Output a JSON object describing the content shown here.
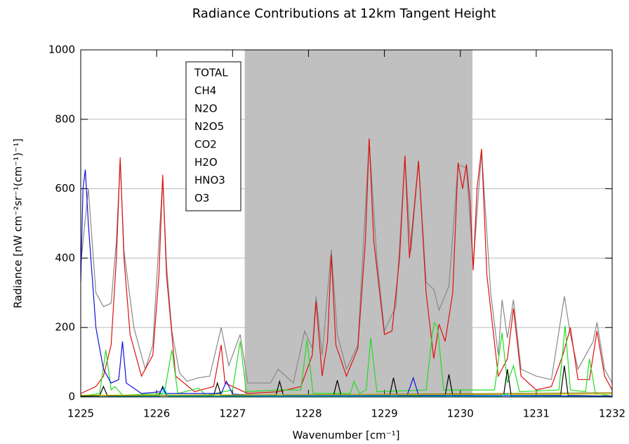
{
  "chart_data": {
    "type": "line",
    "title": "Radiance Contributions at 12km Tangent Height",
    "xlabel": "Wavenumber [cm⁻¹]",
    "ylabel": "Radiance [nW cm⁻²sr⁻¹(cm⁻¹)⁻¹]",
    "xlim": [
      1225,
      1232
    ],
    "ylim": [
      0,
      1000
    ],
    "xticks": [
      1225,
      1226,
      1227,
      1228,
      1229,
      1230,
      1231,
      1232
    ],
    "yticks": [
      0,
      200,
      400,
      600,
      800,
      1000
    ],
    "grid": true,
    "shade": [
      1227.16,
      1230.16
    ],
    "shade_color": "#c0c0c0",
    "legend": "upper left",
    "series": [
      {
        "name": "TOTAL",
        "color": "#888888",
        "x": [
          1225.0,
          1225.1,
          1225.2,
          1225.3,
          1225.4,
          1225.47,
          1225.52,
          1225.57,
          1225.7,
          1225.85,
          1225.95,
          1226.08,
          1226.13,
          1226.2,
          1226.3,
          1226.4,
          1226.55,
          1226.7,
          1226.85,
          1226.95,
          1227.1,
          1227.2,
          1227.5,
          1227.6,
          1227.8,
          1227.95,
          1228.05,
          1228.1,
          1228.18,
          1228.3,
          1228.38,
          1228.5,
          1228.65,
          1228.8,
          1228.9,
          1229.0,
          1229.15,
          1229.27,
          1229.35,
          1229.45,
          1229.55,
          1229.65,
          1229.72,
          1229.85,
          1229.97,
          1230.08,
          1230.17,
          1230.28,
          1230.4,
          1230.5,
          1230.55,
          1230.62,
          1230.7,
          1230.8,
          1231.0,
          1231.2,
          1231.37,
          1231.45,
          1231.55,
          1231.75,
          1231.8,
          1231.9,
          1232.0
        ],
        "values": [
          380,
          600,
          300,
          260,
          270,
          450,
          680,
          420,
          200,
          80,
          150,
          630,
          380,
          190,
          70,
          45,
          55,
          60,
          200,
          90,
          180,
          40,
          40,
          80,
          40,
          190,
          140,
          290,
          120,
          425,
          180,
          80,
          150,
          740,
          400,
          190,
          260,
          690,
          420,
          680,
          330,
          310,
          250,
          320,
          670,
          660,
          380,
          710,
          300,
          120,
          280,
          170,
          280,
          80,
          60,
          50,
          290,
          180,
          80,
          160,
          215,
          80,
          40
        ]
      },
      {
        "name": "CH4",
        "color": "#e01010",
        "x": [
          1225.0,
          1225.2,
          1225.3,
          1225.4,
          1225.47,
          1225.52,
          1225.57,
          1225.65,
          1225.8,
          1225.95,
          1226.03,
          1226.08,
          1226.13,
          1226.25,
          1226.5,
          1226.75,
          1226.85,
          1226.9,
          1227.0,
          1227.2,
          1227.6,
          1227.9,
          1228.05,
          1228.1,
          1228.18,
          1228.25,
          1228.3,
          1228.36,
          1228.5,
          1228.65,
          1228.75,
          1228.8,
          1228.86,
          1229.0,
          1229.1,
          1229.2,
          1229.27,
          1229.33,
          1229.45,
          1229.55,
          1229.65,
          1229.72,
          1229.8,
          1229.9,
          1229.97,
          1230.03,
          1230.08,
          1230.13,
          1230.17,
          1230.22,
          1230.28,
          1230.35,
          1230.5,
          1230.62,
          1230.7,
          1230.8,
          1231.0,
          1231.2,
          1231.35,
          1231.45,
          1231.55,
          1231.7,
          1231.8,
          1231.9,
          1232.0
        ],
        "values": [
          10,
          30,
          60,
          150,
          400,
          690,
          400,
          180,
          60,
          120,
          350,
          640,
          350,
          60,
          15,
          30,
          150,
          40,
          30,
          10,
          15,
          30,
          120,
          275,
          60,
          160,
          410,
          150,
          60,
          140,
          450,
          745,
          450,
          180,
          190,
          400,
          695,
          400,
          680,
          300,
          110,
          210,
          160,
          300,
          675,
          600,
          670,
          560,
          365,
          600,
          715,
          350,
          60,
          110,
          255,
          60,
          20,
          30,
          120,
          200,
          50,
          50,
          190,
          60,
          20
        ]
      },
      {
        "name": "N2O",
        "color": "#22dd22",
        "x": [
          1225.0,
          1225.25,
          1225.33,
          1225.4,
          1225.45,
          1225.55,
          1226.1,
          1226.2,
          1226.28,
          1226.55,
          1226.65,
          1227.0,
          1227.1,
          1227.18,
          1227.6,
          1227.9,
          1227.98,
          1228.06,
          1228.55,
          1228.6,
          1228.67,
          1228.76,
          1228.82,
          1228.9,
          1229.55,
          1229.63,
          1229.66,
          1229.7,
          1229.78,
          1230.45,
          1230.55,
          1230.62,
          1230.7,
          1230.78,
          1231.3,
          1231.38,
          1231.45,
          1231.65,
          1231.7,
          1231.78,
          1232.0
        ],
        "values": [
          2,
          10,
          135,
          20,
          30,
          5,
          10,
          135,
          10,
          25,
          5,
          20,
          160,
          15,
          20,
          20,
          165,
          10,
          10,
          45,
          10,
          20,
          170,
          15,
          20,
          180,
          215,
          200,
          20,
          20,
          185,
          40,
          90,
          15,
          20,
          205,
          20,
          15,
          110,
          10,
          2
        ]
      },
      {
        "name": "N2O5",
        "color": "#8b7500",
        "x": [
          1225.0,
          1232.0
        ],
        "values": [
          2,
          12
        ]
      },
      {
        "name": "CO2",
        "color": "#000000",
        "x": [
          1225.0,
          1225.25,
          1225.3,
          1225.35,
          1226.03,
          1226.08,
          1226.13,
          1226.75,
          1226.8,
          1226.85,
          1227.57,
          1227.62,
          1227.67,
          1228.33,
          1228.38,
          1228.43,
          1229.07,
          1229.12,
          1229.17,
          1229.8,
          1229.85,
          1229.9,
          1230.57,
          1230.62,
          1230.67,
          1231.32,
          1231.37,
          1231.42,
          1232.0
        ],
        "values": [
          2,
          4,
          30,
          4,
          4,
          30,
          4,
          4,
          40,
          4,
          4,
          45,
          4,
          4,
          48,
          4,
          4,
          55,
          4,
          4,
          65,
          4,
          4,
          80,
          4,
          4,
          90,
          4,
          2
        ]
      },
      {
        "name": "H2O",
        "color": "#1010e0",
        "x": [
          1225.0,
          1225.03,
          1225.06,
          1225.1,
          1225.2,
          1225.3,
          1225.4,
          1225.5,
          1225.55,
          1225.6,
          1225.8,
          1226.05,
          1226.08,
          1226.12,
          1226.85,
          1226.92,
          1227.0,
          1227.5,
          1229.3,
          1229.38,
          1229.45,
          1232.0
        ],
        "values": [
          330,
          600,
          655,
          500,
          200,
          80,
          40,
          50,
          160,
          40,
          10,
          15,
          25,
          10,
          10,
          45,
          8,
          3,
          5,
          55,
          5,
          2
        ]
      },
      {
        "name": "HNO3",
        "color": "#c8c800",
        "x": [
          1225.0,
          1232.0
        ],
        "values": [
          5,
          8
        ]
      },
      {
        "name": "O3",
        "color": "#00e0e0",
        "x": [
          1225.0,
          1226.05,
          1226.1,
          1226.15,
          1230.55,
          1230.6,
          1230.65,
          1232.0
        ],
        "values": [
          0,
          2,
          25,
          2,
          2,
          10,
          2,
          0
        ]
      }
    ]
  }
}
